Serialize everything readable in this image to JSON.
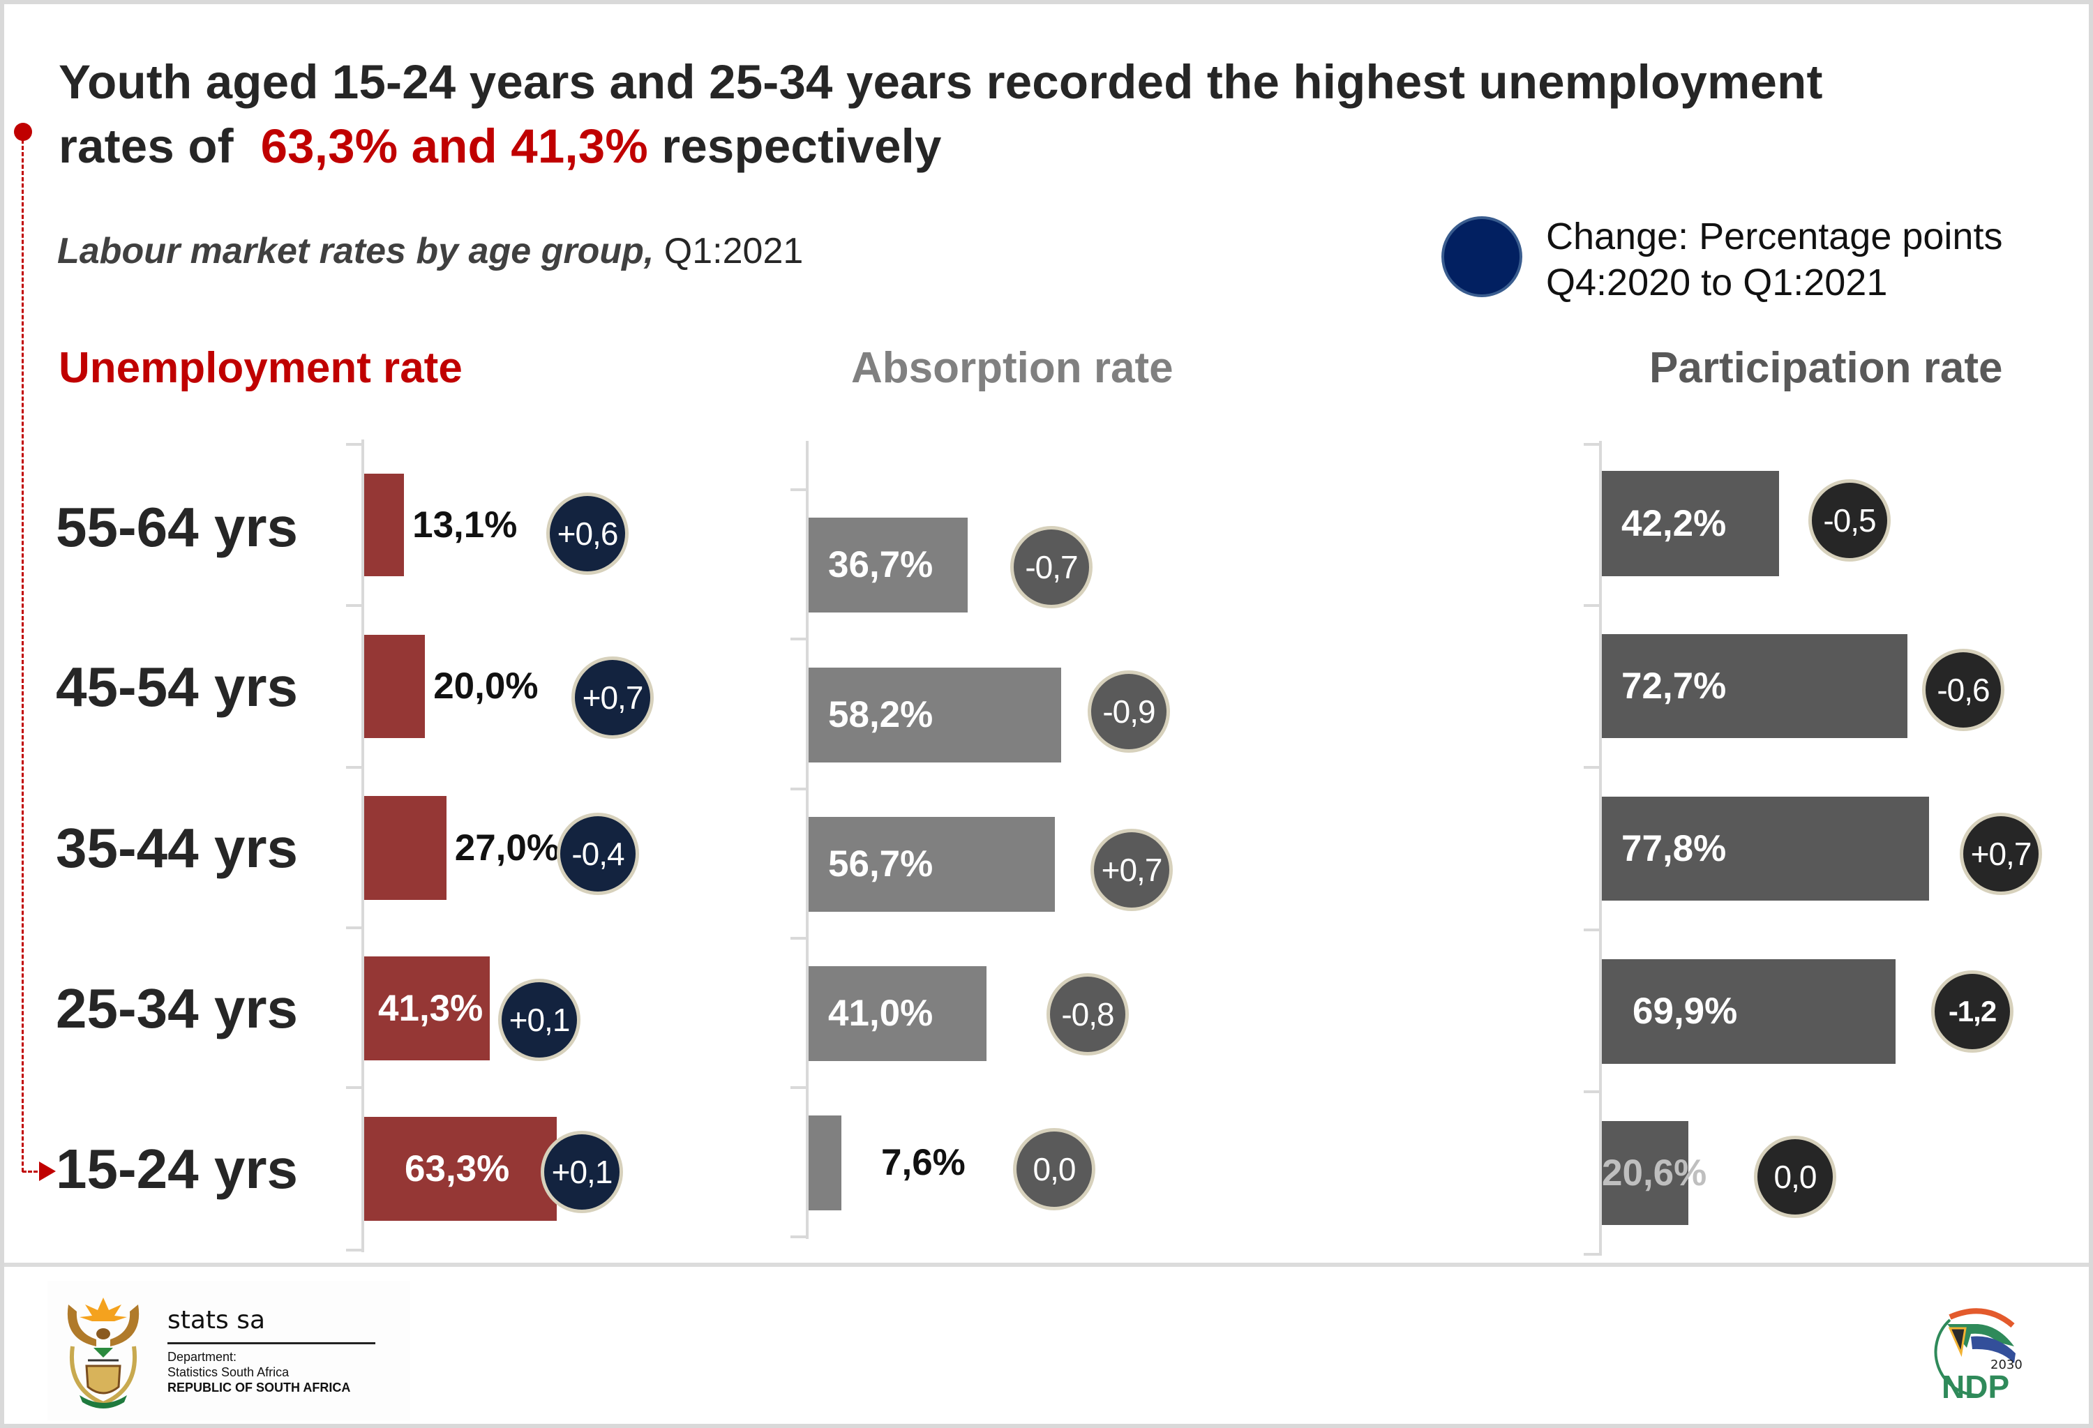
{
  "title": {
    "line1": "Youth aged 15-24 years and 25-34 years recorded the highest unemployment",
    "line2_prefix": "rates of ",
    "line2_highlight": "63,3% and 41,3%",
    "line2_suffix": " respectively"
  },
  "subtitle": {
    "italic": "Labour market rates by age group,",
    "period": " Q1:2021"
  },
  "legend": {
    "line1": "Change: Percentage points",
    "line2": "Q4:2020 to Q1:2021",
    "color": "#022061"
  },
  "colors": {
    "unemployment_bar": "#953735",
    "unemployment_circle": "#13233f",
    "absorption_bar": "#808080",
    "absorption_circle": "#5a5a5a",
    "participation_bar": "#595959",
    "participation_circle": "#262626",
    "highlight": "#c00000",
    "circle_border": "#d7d1bc"
  },
  "footer": {
    "org_name": "stats sa",
    "dept_line1": "Department:",
    "dept_line2": "Statistics South Africa",
    "dept_line3": "REPUBLIC OF SOUTH AFRICA",
    "ndp_year": "2030",
    "ndp_text": "NDP"
  },
  "chart_data": {
    "type": "bar",
    "orientation": "horizontal",
    "title": "Labour market rates by age group, Q1:2021",
    "categories": [
      "55-64 yrs",
      "45-54 yrs",
      "35-44 yrs",
      "25-34 yrs",
      "15-24 yrs"
    ],
    "series": [
      {
        "name": "Unemployment rate",
        "values": [
          13.1,
          20.0,
          27.0,
          41.3,
          63.3
        ],
        "labels": [
          "13,1%",
          "20,0%",
          "27,0%",
          "41,3%",
          "63,3%"
        ],
        "change_pp": [
          "+0,6",
          "+0,7",
          "-0,4",
          "+0,1",
          "+0,1"
        ]
      },
      {
        "name": "Absorption rate",
        "values": [
          36.7,
          58.2,
          56.7,
          41.0,
          7.6
        ],
        "labels": [
          "36,7%",
          "58,2%",
          "56,7%",
          "41,0%",
          "7,6%"
        ],
        "change_pp": [
          "-0,7",
          "-0,9",
          "+0,7",
          "-0,8",
          "0,0"
        ]
      },
      {
        "name": "Participation rate",
        "values": [
          42.2,
          72.7,
          77.8,
          69.9,
          20.6
        ],
        "labels": [
          "42,2%",
          "72,7%",
          "77,8%",
          "69,9%",
          "20,6%"
        ],
        "change_pp": [
          "-0,5",
          "-0,6",
          "+0,7",
          "-1,2",
          "0,0"
        ]
      }
    ],
    "change_legend": "Change: Percentage points Q4:2020 to Q1:2021",
    "xlabel": "",
    "ylabel": "",
    "xlim": [
      0,
      100
    ],
    "grid": false,
    "legend_position": "top-right"
  }
}
